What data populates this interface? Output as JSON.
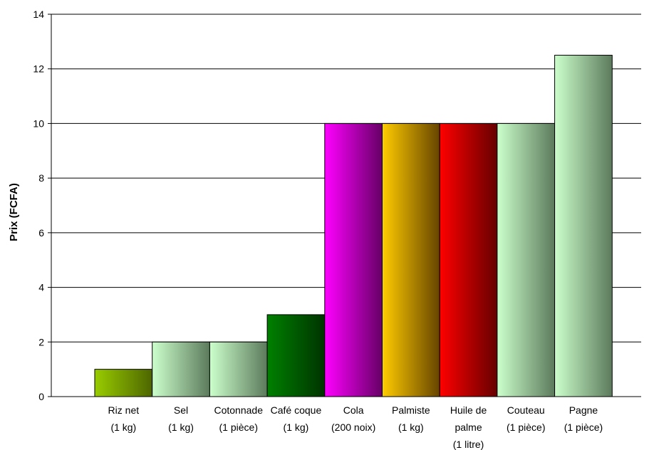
{
  "chart_data": {
    "type": "bar",
    "title": "",
    "xlabel": "",
    "ylabel": "Prix (FCFA)",
    "ylim": [
      0,
      14
    ],
    "yticks": [
      0,
      2,
      4,
      6,
      8,
      10,
      12,
      14
    ],
    "grid": true,
    "legend": "none",
    "categories": [
      [
        "Riz net",
        "(1 kg)"
      ],
      [
        "Sel",
        "(1 kg)"
      ],
      [
        "Cotonnade",
        "(1 pièce)"
      ],
      [
        "Café coque",
        "(1 kg)"
      ],
      [
        "Cola",
        "(200 noix)"
      ],
      [
        "Palmiste",
        "(1 kg)"
      ],
      [
        "Huile de",
        "palme",
        "(1 litre)"
      ],
      [
        "Couteau",
        "(1 pièce)"
      ],
      [
        "Pagne",
        "(1 pièce)"
      ]
    ],
    "values": [
      1,
      2,
      2,
      3,
      10,
      10,
      10,
      10,
      12.5
    ],
    "colors": [
      [
        "#99cc00",
        "#4d6600"
      ],
      [
        "#ccffcc",
        "#5c7a5c"
      ],
      [
        "#ccffcc",
        "#5c7a5c"
      ],
      [
        "#008000",
        "#003300"
      ],
      [
        "#ff00ff",
        "#660066"
      ],
      [
        "#ffcc00",
        "#664400"
      ],
      [
        "#ff0000",
        "#660000"
      ],
      [
        "#ccffcc",
        "#5c7a5c"
      ],
      [
        "#ccffcc",
        "#5c7a5c"
      ]
    ]
  }
}
